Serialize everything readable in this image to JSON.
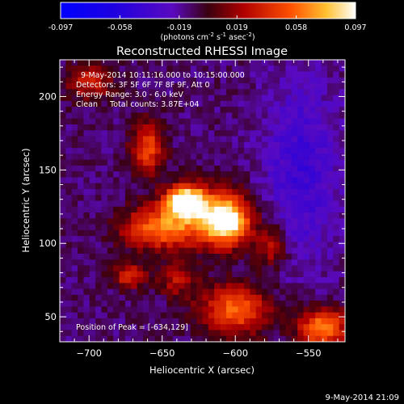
{
  "chart_data": {
    "type": "heatmap",
    "title": "Reconstructed RHESSI Image",
    "xlabel": "Heliocentric X (arcsec)",
    "ylabel": "Heliocentric Y (arcsec)",
    "xlim": [
      -720,
      -525
    ],
    "ylim": [
      33,
      225
    ],
    "x_ticks": [
      -700,
      -650,
      -600,
      -550
    ],
    "y_ticks": [
      50,
      100,
      150,
      200
    ],
    "colorbar": {
      "ticks": [
        "-0.097",
        "-0.058",
        "-0.019",
        "0.019",
        "0.058",
        "0.097"
      ],
      "range": [
        -0.097,
        0.097
      ],
      "units_label": "(photons cm",
      "units_exp1": "-2",
      "units_mid": " s",
      "units_exp2": "-1",
      "units_tail": " asec",
      "units_exp3": "-2",
      "units_end": ")"
    },
    "annotations": {
      "line1": "9-May-2014 10:11:16.000 to 10:15:00.000",
      "line2": "Detectors: 3F 5F 6F 7F 8F 9F, Att 0",
      "line3": "Energy Range: 3.0 - 6.0 keV",
      "line4": "Clean     Total counts: 3.87E+04",
      "peak": "Position of Peak = [-634,129]"
    },
    "sources": [
      {
        "x": -634,
        "y": 129,
        "value": 0.097,
        "sigma_x": 9,
        "sigma_y": 7
      },
      {
        "x": -605,
        "y": 115,
        "value": 0.07,
        "sigma_x": 10,
        "sigma_y": 11
      },
      {
        "x": -655,
        "y": 110,
        "value": 0.05,
        "sigma_x": 17,
        "sigma_y": 10
      },
      {
        "x": -620,
        "y": 118,
        "value": 0.05,
        "sigma_x": 20,
        "sigma_y": 14
      },
      {
        "x": -660,
        "y": 165,
        "value": 0.048,
        "sigma_x": 8,
        "sigma_y": 12
      },
      {
        "x": -575,
        "y": 98,
        "value": 0.03,
        "sigma_x": 8,
        "sigma_y": 10
      },
      {
        "x": -672,
        "y": 78,
        "value": 0.04,
        "sigma_x": 8,
        "sigma_y": 6
      },
      {
        "x": -600,
        "y": 55,
        "value": 0.055,
        "sigma_x": 17,
        "sigma_y": 12
      },
      {
        "x": -640,
        "y": 75,
        "value": 0.025,
        "sigma_x": 9,
        "sigma_y": 8
      },
      {
        "x": -540,
        "y": 42,
        "value": 0.065,
        "sigma_x": 12,
        "sigma_y": 10
      },
      {
        "x": -700,
        "y": 210,
        "value": 0.03,
        "sigma_x": 12,
        "sigma_y": 9
      }
    ],
    "background": -0.012,
    "grid": false
  },
  "footer": {
    "timestamp": "9-May-2014 21:09"
  }
}
